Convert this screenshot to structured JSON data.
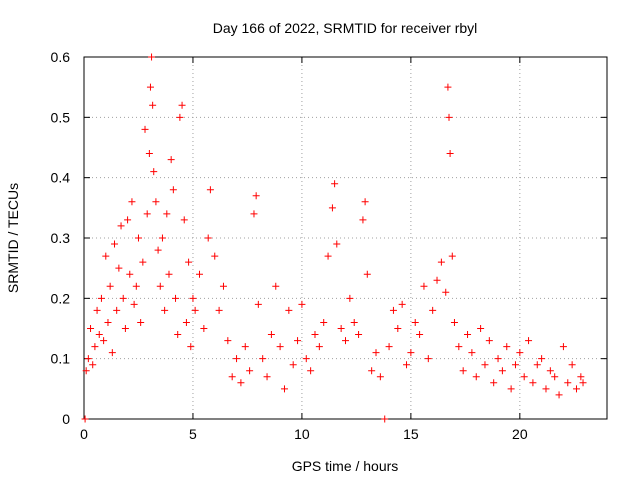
{
  "chart_data": {
    "type": "scatter",
    "title": "Day 166 of 2022, SRMTID for receiver rbyl",
    "xlabel": "GPS time / hours",
    "ylabel": "SRMTID / TECUs",
    "xlim": [
      0,
      24
    ],
    "ylim": [
      0,
      0.6
    ],
    "xticks": [
      "0",
      "5",
      "10",
      "15",
      "20"
    ],
    "yticks": [
      "0",
      "0.1",
      "0.2",
      "0.3",
      "0.4",
      "0.5",
      "0.6"
    ],
    "grid": true,
    "marker": "+",
    "series": [
      {
        "name": "SRMTID",
        "color": "#ff0000",
        "points": [
          [
            0.05,
            0.0
          ],
          [
            0.1,
            0.08
          ],
          [
            0.2,
            0.1
          ],
          [
            0.3,
            0.15
          ],
          [
            0.4,
            0.09
          ],
          [
            0.5,
            0.12
          ],
          [
            0.6,
            0.18
          ],
          [
            0.7,
            0.14
          ],
          [
            0.8,
            0.2
          ],
          [
            0.9,
            0.13
          ],
          [
            1.0,
            0.27
          ],
          [
            1.1,
            0.16
          ],
          [
            1.2,
            0.22
          ],
          [
            1.3,
            0.11
          ],
          [
            1.4,
            0.29
          ],
          [
            1.5,
            0.18
          ],
          [
            1.6,
            0.25
          ],
          [
            1.7,
            0.32
          ],
          [
            1.8,
            0.2
          ],
          [
            1.9,
            0.15
          ],
          [
            2.0,
            0.33
          ],
          [
            2.1,
            0.24
          ],
          [
            2.2,
            0.36
          ],
          [
            2.3,
            0.19
          ],
          [
            2.4,
            0.22
          ],
          [
            2.5,
            0.3
          ],
          [
            2.6,
            0.16
          ],
          [
            2.7,
            0.26
          ],
          [
            2.8,
            0.48
          ],
          [
            2.9,
            0.34
          ],
          [
            3.0,
            0.44
          ],
          [
            3.05,
            0.55
          ],
          [
            3.1,
            0.6
          ],
          [
            3.15,
            0.52
          ],
          [
            3.2,
            0.41
          ],
          [
            3.3,
            0.36
          ],
          [
            3.4,
            0.28
          ],
          [
            3.5,
            0.22
          ],
          [
            3.6,
            0.3
          ],
          [
            3.7,
            0.18
          ],
          [
            3.8,
            0.34
          ],
          [
            3.9,
            0.24
          ],
          [
            4.0,
            0.43
          ],
          [
            4.1,
            0.38
          ],
          [
            4.2,
            0.2
          ],
          [
            4.3,
            0.14
          ],
          [
            4.4,
            0.5
          ],
          [
            4.5,
            0.52
          ],
          [
            4.6,
            0.33
          ],
          [
            4.7,
            0.16
          ],
          [
            4.8,
            0.26
          ],
          [
            4.9,
            0.12
          ],
          [
            5.0,
            0.2
          ],
          [
            5.1,
            0.18
          ],
          [
            5.3,
            0.24
          ],
          [
            5.5,
            0.15
          ],
          [
            5.7,
            0.3
          ],
          [
            5.8,
            0.38
          ],
          [
            6.0,
            0.27
          ],
          [
            6.2,
            0.18
          ],
          [
            6.4,
            0.22
          ],
          [
            6.6,
            0.13
          ],
          [
            6.8,
            0.07
          ],
          [
            7.0,
            0.1
          ],
          [
            7.2,
            0.06
          ],
          [
            7.4,
            0.12
          ],
          [
            7.6,
            0.08
          ],
          [
            7.8,
            0.34
          ],
          [
            7.9,
            0.37
          ],
          [
            8.0,
            0.19
          ],
          [
            8.2,
            0.1
          ],
          [
            8.4,
            0.07
          ],
          [
            8.6,
            0.14
          ],
          [
            8.8,
            0.22
          ],
          [
            9.0,
            0.12
          ],
          [
            9.2,
            0.05
          ],
          [
            9.4,
            0.18
          ],
          [
            9.6,
            0.09
          ],
          [
            9.8,
            0.13
          ],
          [
            10.0,
            0.19
          ],
          [
            10.2,
            0.1
          ],
          [
            10.4,
            0.08
          ],
          [
            10.6,
            0.14
          ],
          [
            10.8,
            0.12
          ],
          [
            11.0,
            0.16
          ],
          [
            11.2,
            0.27
          ],
          [
            11.4,
            0.35
          ],
          [
            11.5,
            0.39
          ],
          [
            11.6,
            0.29
          ],
          [
            11.8,
            0.15
          ],
          [
            12.0,
            0.13
          ],
          [
            12.2,
            0.2
          ],
          [
            12.4,
            0.16
          ],
          [
            12.6,
            0.14
          ],
          [
            12.8,
            0.33
          ],
          [
            12.9,
            0.36
          ],
          [
            13.0,
            0.24
          ],
          [
            13.2,
            0.08
          ],
          [
            13.4,
            0.11
          ],
          [
            13.6,
            0.07
          ],
          [
            13.8,
            0.0
          ],
          [
            14.0,
            0.12
          ],
          [
            14.2,
            0.18
          ],
          [
            14.4,
            0.15
          ],
          [
            14.6,
            0.19
          ],
          [
            14.8,
            0.09
          ],
          [
            15.0,
            0.11
          ],
          [
            15.2,
            0.16
          ],
          [
            15.4,
            0.14
          ],
          [
            15.6,
            0.22
          ],
          [
            15.8,
            0.1
          ],
          [
            16.0,
            0.18
          ],
          [
            16.2,
            0.23
          ],
          [
            16.4,
            0.26
          ],
          [
            16.6,
            0.21
          ],
          [
            16.7,
            0.55
          ],
          [
            16.75,
            0.5
          ],
          [
            16.8,
            0.44
          ],
          [
            16.9,
            0.27
          ],
          [
            17.0,
            0.16
          ],
          [
            17.2,
            0.12
          ],
          [
            17.4,
            0.08
          ],
          [
            17.6,
            0.14
          ],
          [
            17.8,
            0.11
          ],
          [
            18.0,
            0.07
          ],
          [
            18.2,
            0.15
          ],
          [
            18.4,
            0.09
          ],
          [
            18.6,
            0.13
          ],
          [
            18.8,
            0.06
          ],
          [
            19.0,
            0.1
          ],
          [
            19.2,
            0.08
          ],
          [
            19.4,
            0.12
          ],
          [
            19.6,
            0.05
          ],
          [
            19.8,
            0.09
          ],
          [
            20.0,
            0.11
          ],
          [
            20.2,
            0.07
          ],
          [
            20.4,
            0.13
          ],
          [
            20.6,
            0.06
          ],
          [
            20.8,
            0.09
          ],
          [
            21.0,
            0.1
          ],
          [
            21.2,
            0.05
          ],
          [
            21.4,
            0.08
          ],
          [
            21.6,
            0.07
          ],
          [
            21.8,
            0.04
          ],
          [
            22.0,
            0.12
          ],
          [
            22.2,
            0.06
          ],
          [
            22.4,
            0.09
          ],
          [
            22.6,
            0.05
          ],
          [
            22.8,
            0.07
          ],
          [
            22.9,
            0.06
          ]
        ]
      }
    ]
  }
}
